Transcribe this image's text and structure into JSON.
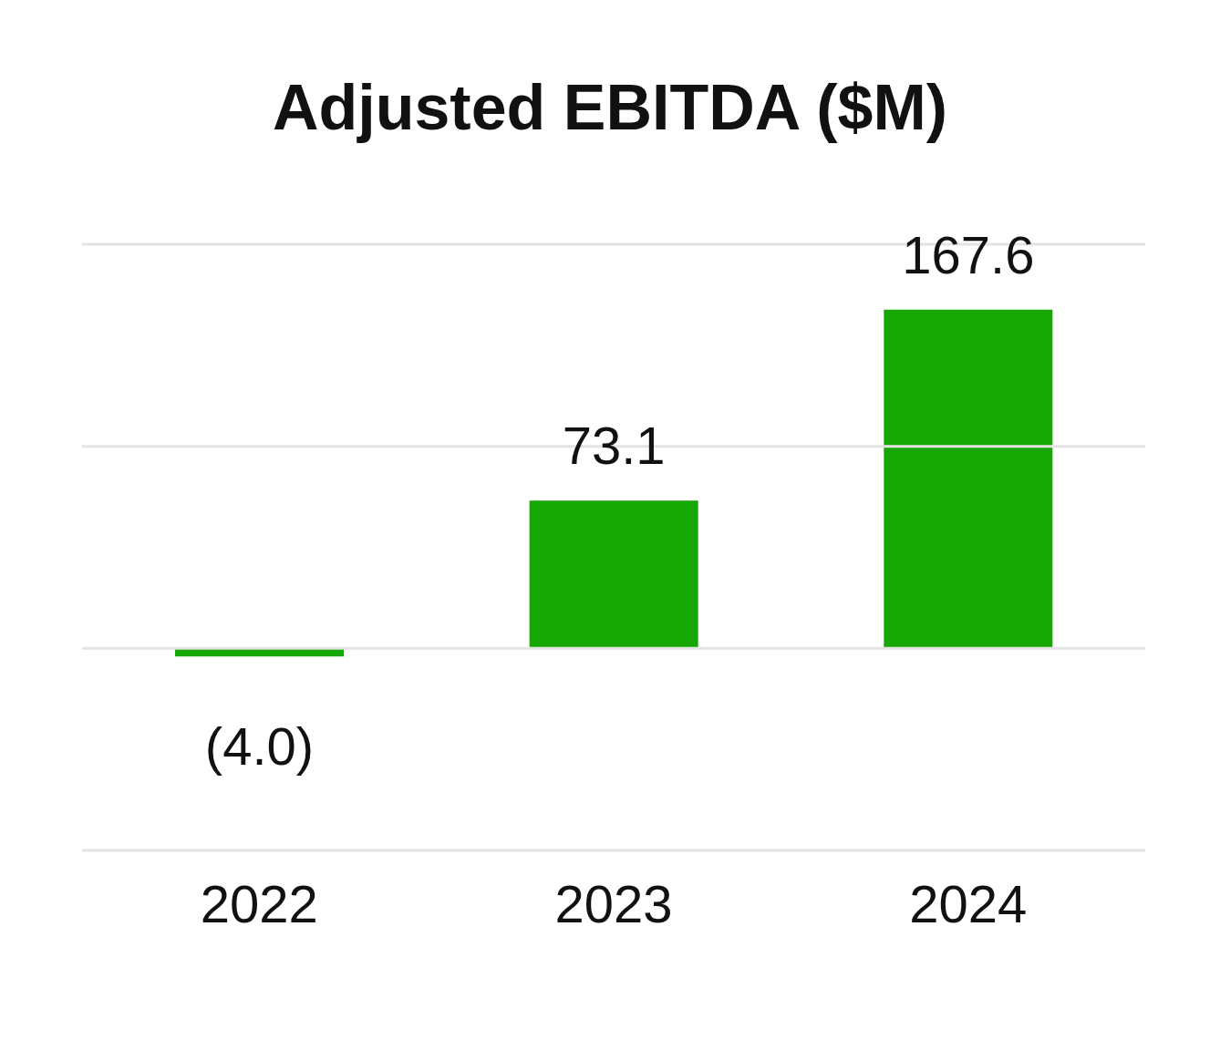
{
  "chart_data": {
    "type": "bar",
    "title": "Adjusted EBITDA ($M)",
    "categories": [
      "2022",
      "2023",
      "2024"
    ],
    "values": [
      -4.0,
      73.1,
      167.6
    ],
    "value_labels": [
      "(4.0)",
      "73.1",
      "167.6"
    ],
    "color": "#17a705",
    "ylim": [
      -100,
      200
    ],
    "yticks": [
      {
        "value": -100,
        "label": null
      },
      {
        "value": 0,
        "label": null
      },
      {
        "value": 100,
        "label": null
      },
      {
        "value": 200,
        "label": null
      }
    ],
    "tick_labels": "x",
    "grid": "y",
    "legend": false
  }
}
